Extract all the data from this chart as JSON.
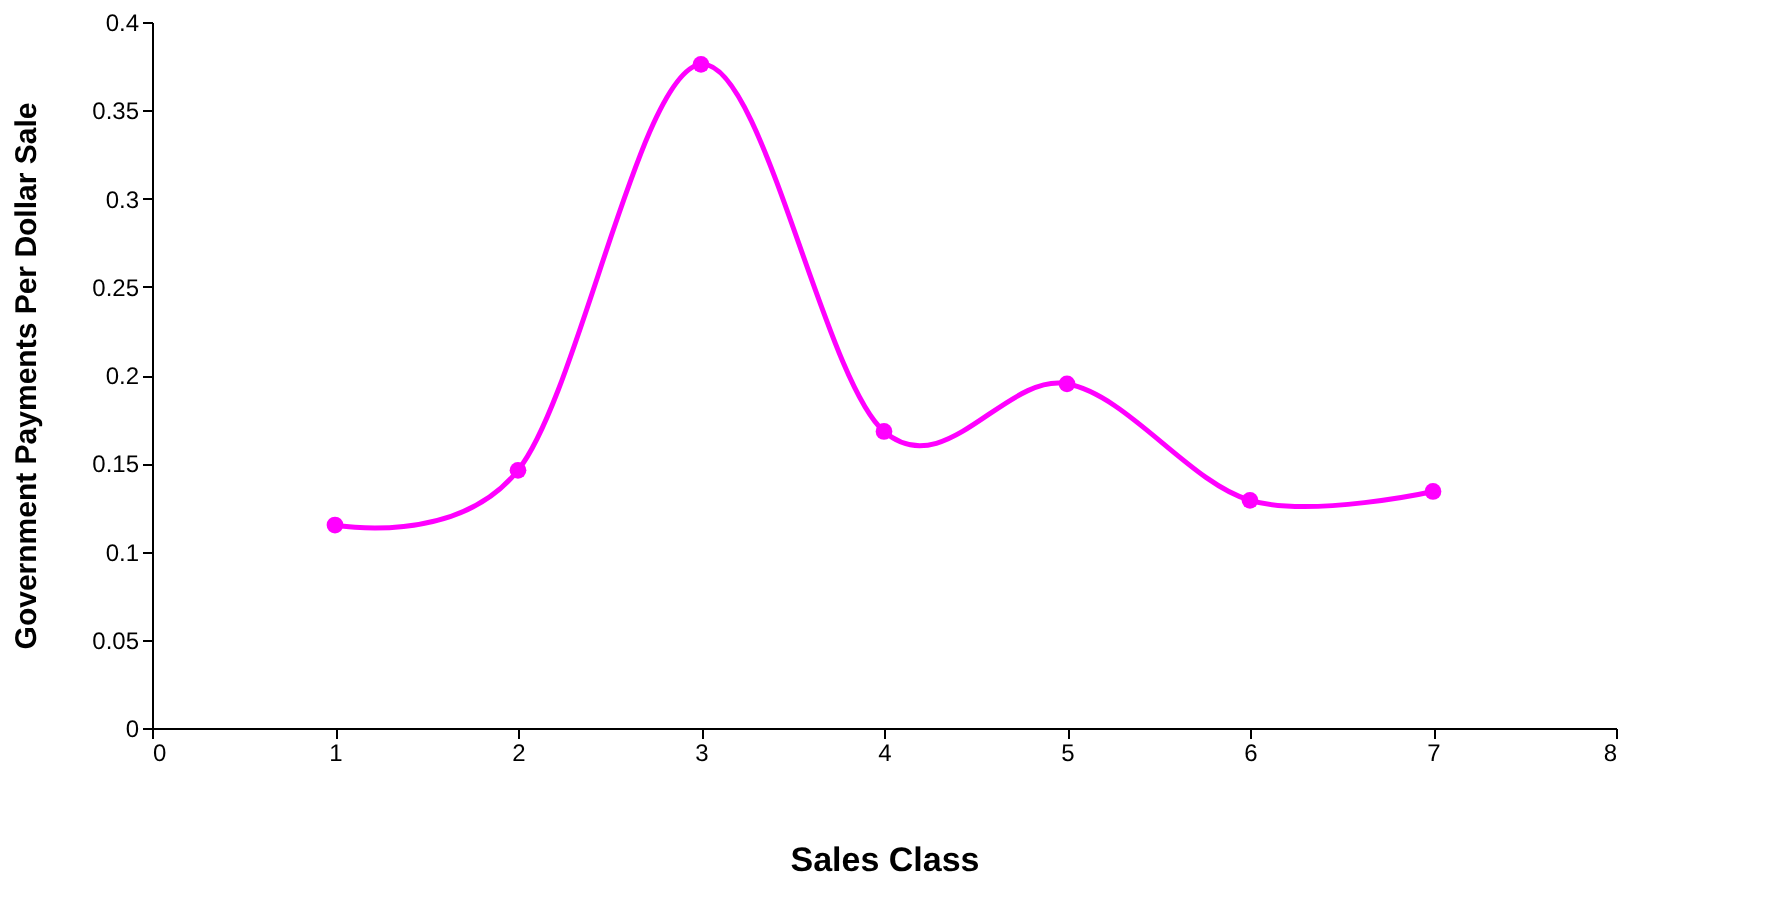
{
  "chart_data": {
    "type": "line",
    "xlabel": "Sales Class",
    "ylabel": "Government Payments Per Dollar Sale",
    "x": [
      1,
      2,
      3,
      4,
      5,
      6,
      7
    ],
    "series": [
      {
        "color": "#ff00ff",
        "values": [
          0.115,
          0.146,
          0.376,
          0.168,
          0.195,
          0.129,
          0.134
        ]
      }
    ],
    "xlim": [
      0,
      8
    ],
    "xticks": [
      0,
      1,
      2,
      3,
      4,
      5,
      6,
      7,
      8
    ],
    "ylim": [
      0,
      0.4
    ],
    "yticks": [
      0,
      0.05,
      0.1,
      0.15,
      0.2,
      0.25,
      0.3,
      0.35,
      0.4
    ],
    "grid": false,
    "marker": "circle",
    "line_style": "solid",
    "legend": false
  }
}
